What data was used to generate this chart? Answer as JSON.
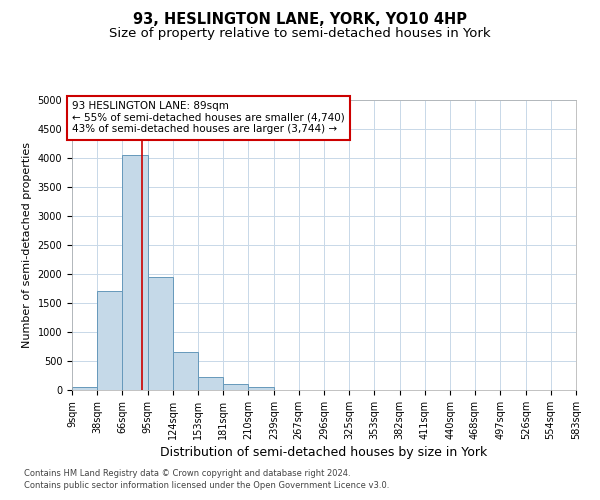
{
  "title": "93, HESLINGTON LANE, YORK, YO10 4HP",
  "subtitle": "Size of property relative to semi-detached houses in York",
  "xlabel": "Distribution of semi-detached houses by size in York",
  "ylabel": "Number of semi-detached properties",
  "footnote1": "Contains HM Land Registry data © Crown copyright and database right 2024.",
  "footnote2": "Contains public sector information licensed under the Open Government Licence v3.0.",
  "bin_labels": [
    "9sqm",
    "38sqm",
    "66sqm",
    "95sqm",
    "124sqm",
    "153sqm",
    "181sqm",
    "210sqm",
    "239sqm",
    "267sqm",
    "296sqm",
    "325sqm",
    "353sqm",
    "382sqm",
    "411sqm",
    "440sqm",
    "468sqm",
    "497sqm",
    "526sqm",
    "554sqm",
    "583sqm"
  ],
  "bin_edges": [
    9,
    38,
    66,
    95,
    124,
    153,
    181,
    210,
    239,
    267,
    296,
    325,
    353,
    382,
    411,
    440,
    468,
    497,
    526,
    554,
    583
  ],
  "bar_heights": [
    50,
    1700,
    4050,
    1950,
    650,
    220,
    100,
    50,
    0,
    0,
    0,
    0,
    0,
    0,
    0,
    0,
    0,
    0,
    0,
    0
  ],
  "bar_color": "#C5D9E8",
  "bar_edge_color": "#6699BB",
  "property_size": 89,
  "property_line_color": "#CC0000",
  "annotation_line1": "93 HESLINGTON LANE: 89sqm",
  "annotation_line2": "← 55% of semi-detached houses are smaller (4,740)",
  "annotation_line3": "43% of semi-detached houses are larger (3,744) →",
  "annotation_box_color": "#CC0000",
  "ylim": [
    0,
    5000
  ],
  "yticks": [
    0,
    500,
    1000,
    1500,
    2000,
    2500,
    3000,
    3500,
    4000,
    4500,
    5000
  ],
  "background_color": "#FFFFFF",
  "grid_color": "#C8D8E8",
  "title_fontsize": 10.5,
  "subtitle_fontsize": 9.5,
  "xlabel_fontsize": 9,
  "ylabel_fontsize": 8,
  "tick_fontsize": 7,
  "annotation_fontsize": 7.5,
  "footnote_fontsize": 6
}
